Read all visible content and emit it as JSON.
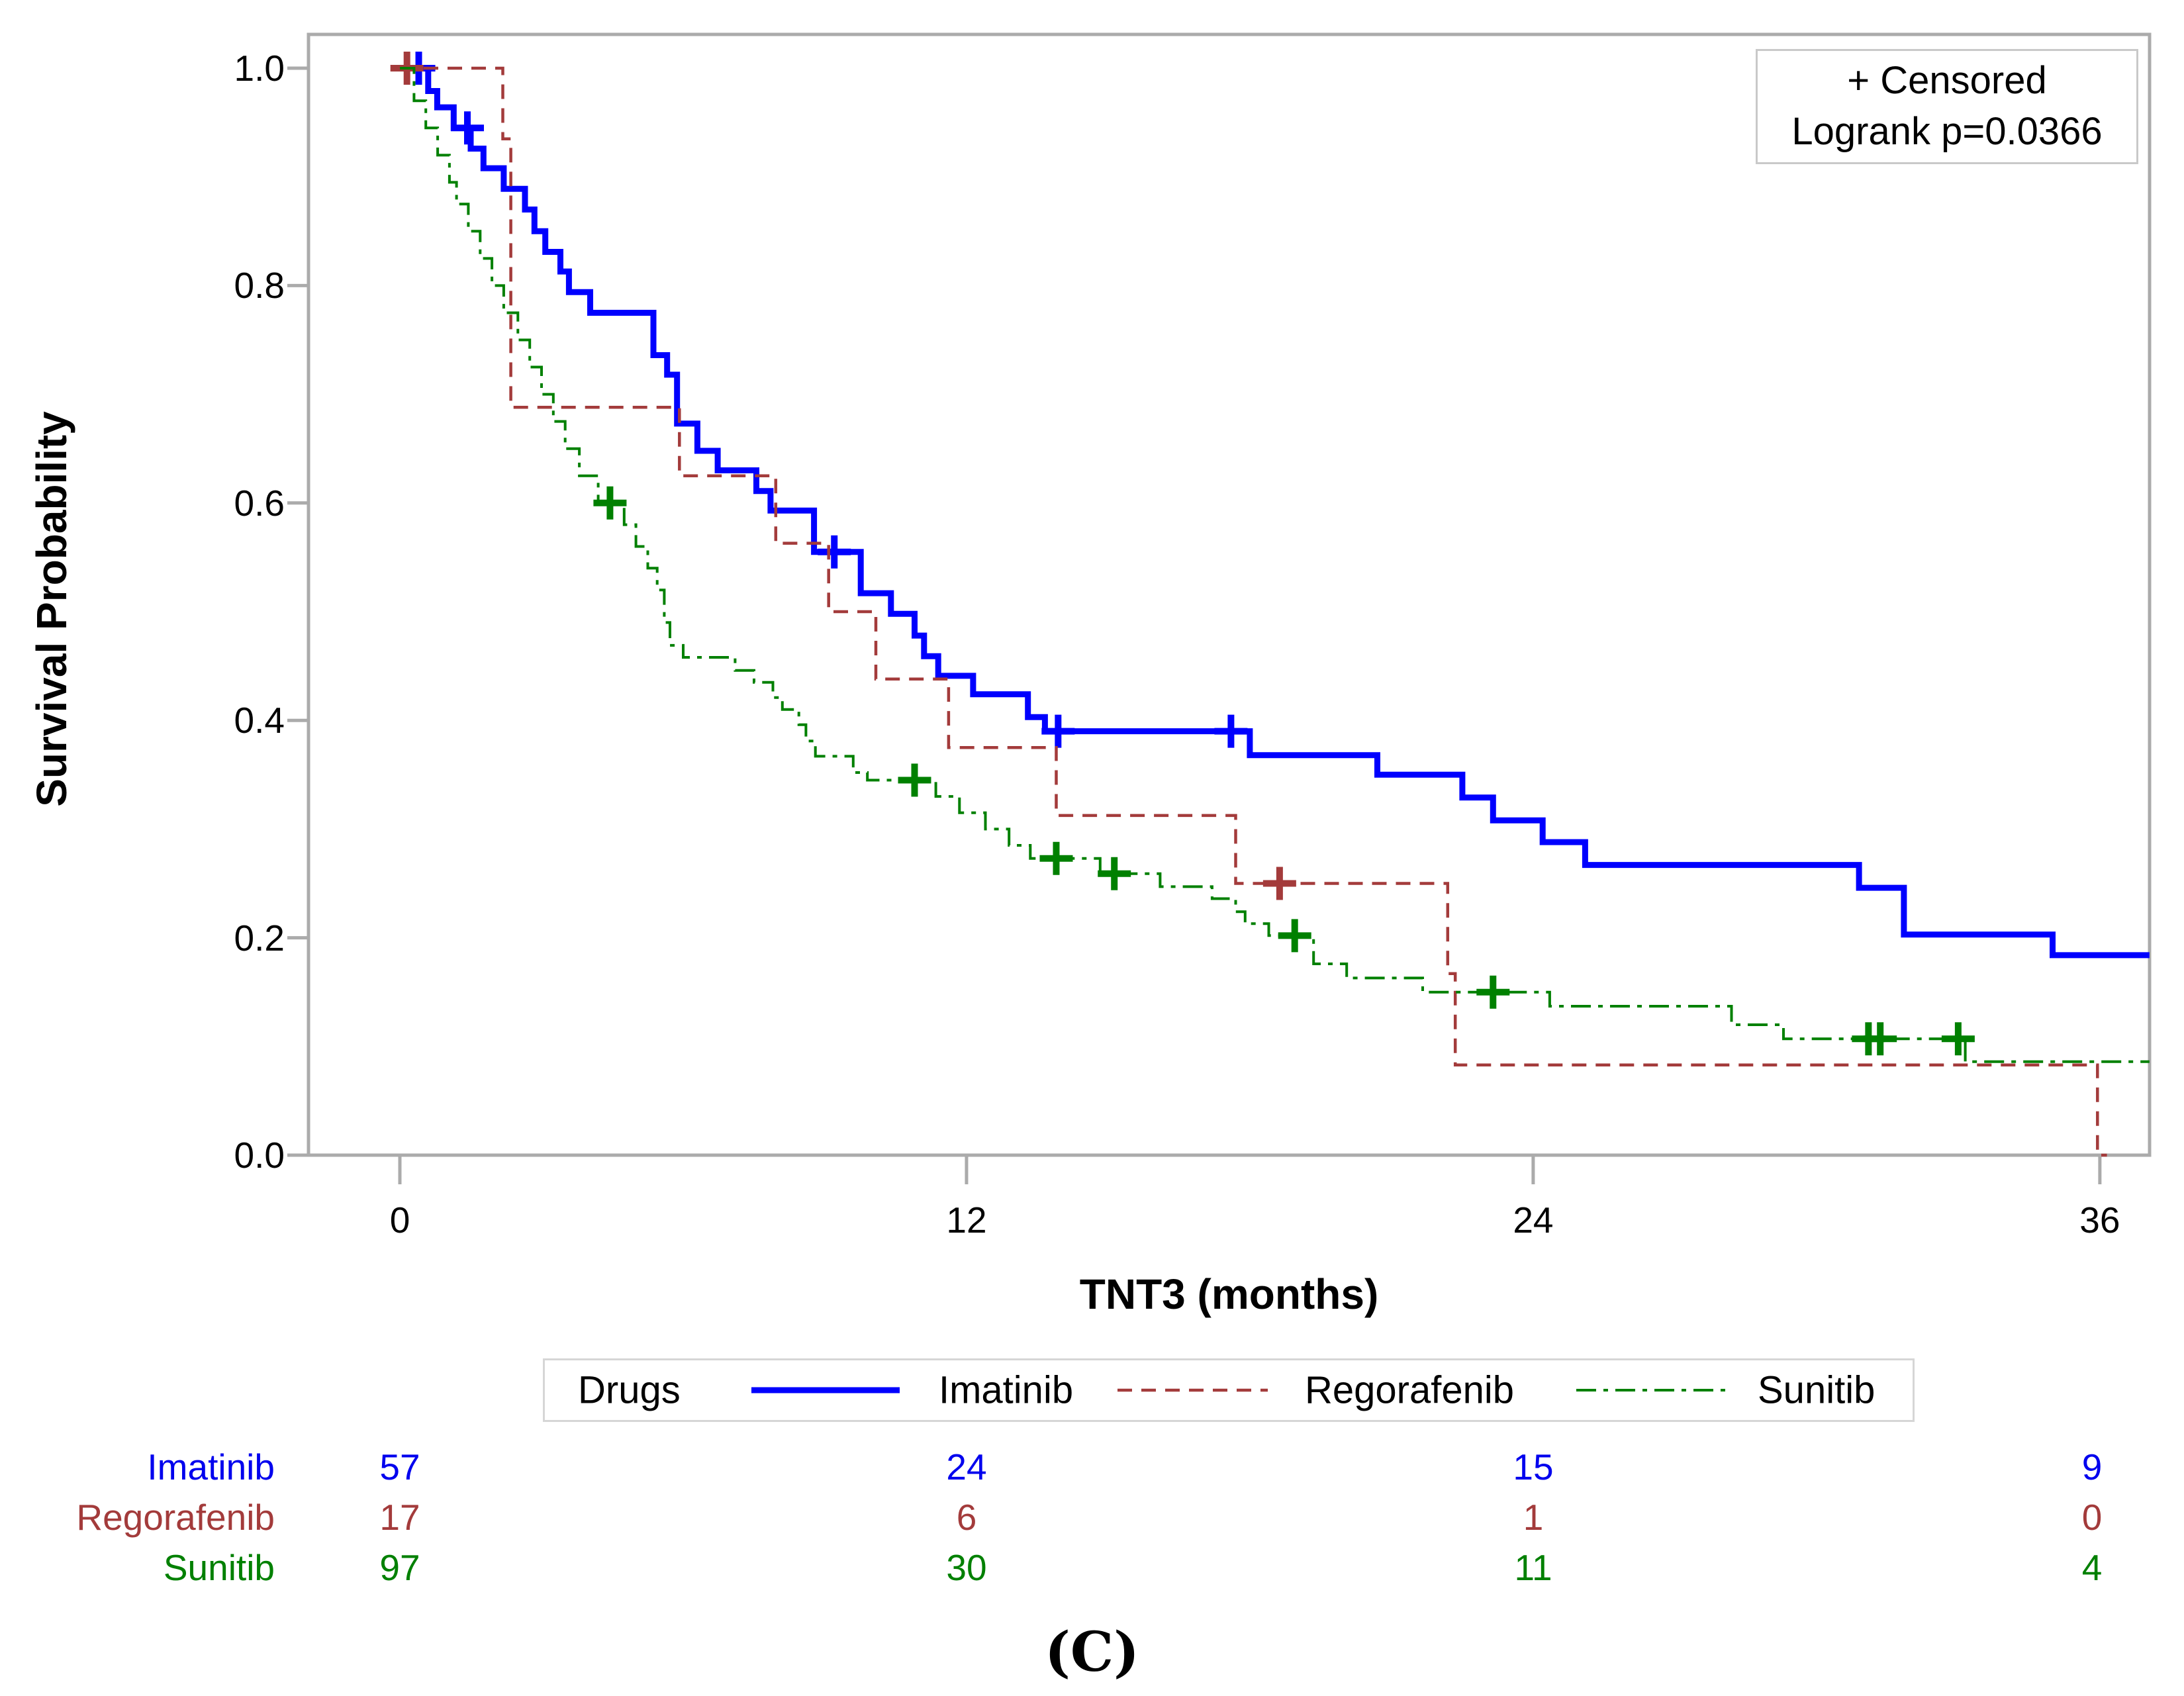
{
  "inset": {
    "line1": "+ Censored",
    "line2": "Logrank p=0.0366"
  },
  "axes": {
    "x_label": "TNT3 (months)",
    "y_label": "Survival Probability",
    "x_ticks": [
      "0",
      "12",
      "24",
      "36"
    ],
    "y_ticks": [
      "0.0",
      "0.2",
      "0.4",
      "0.6",
      "0.8",
      "1.0"
    ]
  },
  "legend": {
    "title": "Drugs",
    "entries": [
      "Imatinib",
      "Regorafenib",
      "Sunitib"
    ]
  },
  "at_risk": {
    "rows": [
      {
        "label": "Imatinib",
        "color": "#0000ee",
        "values": [
          "57",
          "24",
          "15",
          "9"
        ]
      },
      {
        "label": "Regorafenib",
        "color": "#a33b3b",
        "values": [
          "17",
          "6",
          "1",
          "0"
        ]
      },
      {
        "label": "Sunitib",
        "color": "#008000",
        "values": [
          "97",
          "30",
          "11",
          "4"
        ]
      }
    ]
  },
  "caption": "(C)",
  "chart_data": {
    "type": "line",
    "subtype": "kaplan-meier-step",
    "title": "",
    "xlabel": "TNT3 (months)",
    "ylabel": "Survival Probability",
    "xlim": [
      -1.95,
      37.05
    ],
    "ylim": [
      0.0,
      1.03
    ],
    "x_tick_values": [
      0,
      12,
      24,
      36
    ],
    "y_tick_values": [
      0.0,
      0.2,
      0.4,
      0.6,
      0.8,
      1.0
    ],
    "grid": false,
    "legend_position": "bottom",
    "frame_color": "#ababab",
    "series": [
      {
        "name": "Imatinib",
        "color": "#0000fe",
        "style": "solid",
        "line_width": 9,
        "dash": [],
        "points": [
          [
            0,
            1.0
          ],
          [
            0.6,
            0.979
          ],
          [
            0.79,
            0.964
          ],
          [
            1.14,
            0.945
          ],
          [
            1.5,
            0.926
          ],
          [
            1.77,
            0.908
          ],
          [
            2.2,
            0.889
          ],
          [
            2.65,
            0.87
          ],
          [
            2.85,
            0.85
          ],
          [
            3.08,
            0.831
          ],
          [
            3.4,
            0.813
          ],
          [
            3.58,
            0.794
          ],
          [
            4.03,
            0.775
          ],
          [
            5.37,
            0.736
          ],
          [
            5.66,
            0.718
          ],
          [
            5.87,
            0.673
          ],
          [
            6.3,
            0.648
          ],
          [
            6.73,
            0.63
          ],
          [
            7.55,
            0.611
          ],
          [
            7.85,
            0.593
          ],
          [
            8.77,
            0.555
          ],
          [
            9.76,
            0.517
          ],
          [
            10.4,
            0.498
          ],
          [
            10.9,
            0.478
          ],
          [
            11.1,
            0.459
          ],
          [
            11.4,
            0.441
          ],
          [
            12.14,
            0.424
          ],
          [
            13.3,
            0.403
          ],
          [
            13.66,
            0.39
          ],
          [
            18.0,
            0.368
          ],
          [
            20.7,
            0.35
          ],
          [
            22.5,
            0.329
          ],
          [
            23.15,
            0.308
          ],
          [
            24.2,
            0.288
          ],
          [
            25.1,
            0.267
          ],
          [
            30.9,
            0.246
          ],
          [
            31.85,
            0.203
          ],
          [
            35.0,
            0.184
          ],
          [
            37.05,
            0.184
          ]
        ],
        "censors": [
          [
            0.4,
            1.0
          ],
          [
            1.43,
            0.945
          ],
          [
            9.2,
            0.555
          ],
          [
            13.94,
            0.39
          ],
          [
            17.6,
            0.39
          ]
        ]
      },
      {
        "name": "Regorafenib",
        "color": "#a33b3b",
        "style": "dashed",
        "line_width": 4.5,
        "dash": [
          22,
          14
        ],
        "points": [
          [
            0,
            1.0
          ],
          [
            2.18,
            0.935
          ],
          [
            2.35,
            0.688
          ],
          [
            5.92,
            0.625
          ],
          [
            7.96,
            0.563
          ],
          [
            9.08,
            0.5
          ],
          [
            10.08,
            0.438
          ],
          [
            11.62,
            0.375
          ],
          [
            13.9,
            0.3125
          ],
          [
            17.7,
            0.25
          ],
          [
            22.19,
            0.167
          ],
          [
            22.35,
            0.083
          ],
          [
            35.95,
            0.0
          ],
          [
            36.15,
            0.0
          ]
        ],
        "censors": [
          [
            0.15,
            1.0
          ],
          [
            18.63,
            0.25
          ]
        ]
      },
      {
        "name": "Sunitib",
        "color": "#008000",
        "style": "dashdot",
        "line_width": 4,
        "dash": [
          30,
          11,
          7,
          11
        ],
        "points": [
          [
            0,
            1.0
          ],
          [
            0.3,
            0.97
          ],
          [
            0.55,
            0.945
          ],
          [
            0.8,
            0.92
          ],
          [
            1.05,
            0.895
          ],
          [
            1.2,
            0.875
          ],
          [
            1.45,
            0.85
          ],
          [
            1.7,
            0.825
          ],
          [
            1.95,
            0.8
          ],
          [
            2.2,
            0.775
          ],
          [
            2.5,
            0.75
          ],
          [
            2.75,
            0.725
          ],
          [
            3.0,
            0.7
          ],
          [
            3.25,
            0.675
          ],
          [
            3.5,
            0.65
          ],
          [
            3.8,
            0.625
          ],
          [
            4.2,
            0.6
          ],
          [
            4.75,
            0.58
          ],
          [
            5.0,
            0.56
          ],
          [
            5.25,
            0.54
          ],
          [
            5.45,
            0.52
          ],
          [
            5.6,
            0.49
          ],
          [
            5.72,
            0.469
          ],
          [
            6.0,
            0.458
          ],
          [
            7.1,
            0.446
          ],
          [
            7.5,
            0.435
          ],
          [
            7.9,
            0.421
          ],
          [
            8.1,
            0.41
          ],
          [
            8.45,
            0.396
          ],
          [
            8.6,
            0.381
          ],
          [
            8.8,
            0.367
          ],
          [
            9.6,
            0.352
          ],
          [
            9.9,
            0.345
          ],
          [
            11.35,
            0.33
          ],
          [
            11.85,
            0.315
          ],
          [
            12.4,
            0.3
          ],
          [
            12.9,
            0.285
          ],
          [
            13.35,
            0.273
          ],
          [
            14.83,
            0.259
          ],
          [
            16.1,
            0.247
          ],
          [
            17.2,
            0.236
          ],
          [
            17.7,
            0.224
          ],
          [
            17.9,
            0.213
          ],
          [
            18.4,
            0.202
          ],
          [
            19.35,
            0.176
          ],
          [
            20.05,
            0.163
          ],
          [
            21.66,
            0.15
          ],
          [
            24.35,
            0.137
          ],
          [
            28.2,
            0.12
          ],
          [
            29.3,
            0.107
          ],
          [
            33.15,
            0.086
          ],
          [
            37.05,
            0.086
          ]
        ],
        "censors": [
          [
            4.45,
            0.6
          ],
          [
            10.9,
            0.345
          ],
          [
            13.9,
            0.273
          ],
          [
            15.13,
            0.259
          ],
          [
            18.95,
            0.202
          ],
          [
            23.15,
            0.15
          ],
          [
            31.1,
            0.107
          ],
          [
            31.35,
            0.107
          ],
          [
            33.0,
            0.107
          ]
        ]
      }
    ],
    "at_risk_times": [
      0,
      12,
      24,
      36
    ]
  }
}
